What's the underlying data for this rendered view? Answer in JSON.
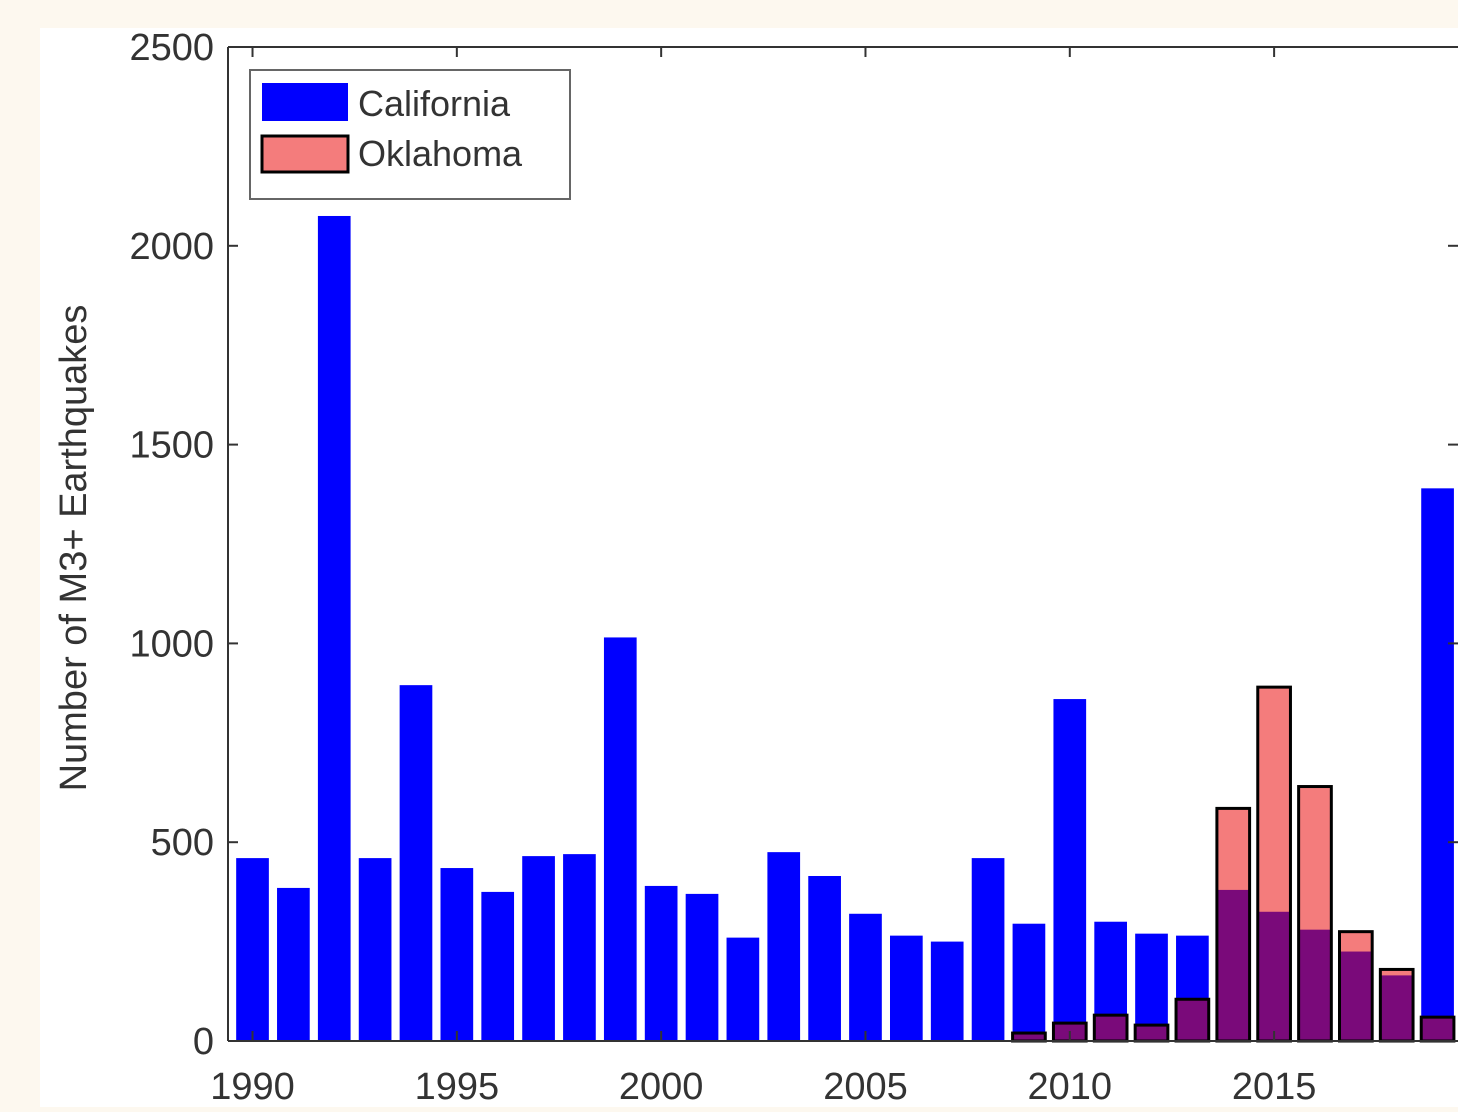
{
  "chart_data": {
    "type": "bar",
    "title": "",
    "xlabel": "",
    "ylabel": "Number of M3+ Earthquakes",
    "xlim": [
      1989.4,
      2019.5
    ],
    "ylim": [
      0,
      2500
    ],
    "xticks": [
      1990,
      1995,
      2000,
      2005,
      2010,
      2015
    ],
    "yticks": [
      0,
      500,
      1000,
      1500,
      2000,
      2500
    ],
    "legend_position": "top-left",
    "grid": false,
    "x": [
      1990,
      1991,
      1992,
      1993,
      1994,
      1995,
      1996,
      1997,
      1998,
      1999,
      2000,
      2001,
      2002,
      2003,
      2004,
      2005,
      2006,
      2007,
      2008,
      2009,
      2010,
      2011,
      2012,
      2013,
      2014,
      2015,
      2016,
      2017,
      2018,
      2019
    ],
    "series": [
      {
        "name": "California",
        "color": "#0000ff",
        "values": [
          460,
          385,
          2075,
          460,
          895,
          435,
          375,
          465,
          470,
          1015,
          390,
          370,
          260,
          475,
          415,
          320,
          265,
          250,
          460,
          295,
          860,
          300,
          270,
          265,
          380,
          325,
          280,
          225,
          165,
          1390
        ]
      },
      {
        "name": "Oklahoma",
        "color": "#f47c7c",
        "edge_color": "#000000",
        "values": [
          0,
          0,
          0,
          0,
          0,
          0,
          0,
          0,
          0,
          0,
          0,
          0,
          0,
          0,
          0,
          0,
          0,
          0,
          0,
          20,
          45,
          65,
          40,
          105,
          585,
          890,
          640,
          275,
          180,
          60
        ]
      }
    ],
    "overlap_color": "#7a0a7a"
  }
}
